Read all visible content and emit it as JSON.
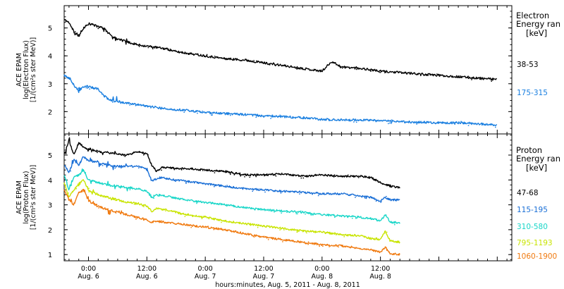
{
  "chart_data": [
    {
      "type": "line",
      "panel": "electron",
      "ylabel_lines": [
        "ACE EPAM",
        "log(Electron Flux)",
        "[1/(cm²s ster MeV)]"
      ],
      "legend_title_lines": [
        "Electron",
        "Energy ran"
      ],
      "legend_unit": "[keV]",
      "ylim": [
        1.2,
        5.8
      ],
      "yticks": [
        2,
        3,
        4,
        5
      ],
      "xlim": [
        -5,
        87
      ],
      "series": [
        {
          "name": "38-53",
          "color": "#000000",
          "x": [
            -5,
            -4,
            -3,
            -2,
            -1,
            0,
            1,
            2,
            3,
            4,
            5,
            6,
            8,
            10,
            12,
            14,
            16,
            18,
            20,
            24,
            28,
            32,
            36,
            40,
            44,
            48,
            50,
            52,
            56,
            60,
            64,
            68,
            72,
            76,
            80,
            84
          ],
          "y": [
            5.3,
            5.2,
            4.85,
            4.7,
            5.0,
            5.15,
            5.1,
            5.05,
            5.0,
            4.85,
            4.7,
            4.6,
            4.5,
            4.4,
            4.35,
            4.3,
            4.25,
            4.15,
            4.1,
            4.0,
            3.9,
            3.85,
            3.75,
            3.65,
            3.55,
            3.45,
            3.8,
            3.6,
            3.55,
            3.45,
            3.4,
            3.35,
            3.3,
            3.25,
            3.2,
            3.15
          ]
        },
        {
          "name": "175-315",
          "color": "#1a7fe0",
          "x": [
            -5,
            -4,
            -3,
            -2,
            -1,
            0,
            1,
            2,
            3,
            4,
            6,
            8,
            12,
            16,
            20,
            24,
            28,
            32,
            36,
            40,
            44,
            48,
            52,
            56,
            60,
            64,
            68,
            72,
            76,
            80,
            84
          ],
          "y": [
            3.3,
            3.2,
            2.95,
            2.75,
            2.9,
            2.9,
            2.85,
            2.8,
            2.6,
            2.45,
            2.35,
            2.3,
            2.2,
            2.1,
            2.05,
            1.97,
            1.93,
            1.9,
            1.85,
            1.82,
            1.78,
            1.72,
            1.7,
            1.7,
            1.67,
            1.64,
            1.62,
            1.6,
            1.6,
            1.57,
            1.52
          ]
        }
      ]
    },
    {
      "type": "line",
      "panel": "proton",
      "ylabel_lines": [
        "ACE EPAM",
        "log(Proton Flux)",
        "[1/(cm²s ster MeV)]"
      ],
      "legend_title_lines": [
        "Proton",
        "Energy ran"
      ],
      "legend_unit": "[keV]",
      "ylim": [
        0.75,
        5.85
      ],
      "yticks": [
        1,
        2,
        3,
        4,
        5
      ],
      "xlim": [
        -5,
        87
      ],
      "xtick_labels": [
        {
          "x": 0,
          "time": "0:00",
          "date": "Aug. 6"
        },
        {
          "x": 12,
          "time": "12:00",
          "date": "Aug. 6"
        },
        {
          "x": 24,
          "time": "0:00",
          "date": "Aug. 7"
        },
        {
          "x": 36,
          "time": "12:00",
          "date": "Aug. 7"
        },
        {
          "x": 48,
          "time": "0:00",
          "date": "Aug. 8"
        },
        {
          "x": 60,
          "time": "12:00",
          "date": "Aug. 8"
        }
      ],
      "xlabel": "hours:minutes, Aug.  5, 2011 - Aug.  8, 2011",
      "series": [
        {
          "name": "47-68",
          "color": "#000000",
          "x": [
            -5,
            -4,
            -3,
            -2,
            -1,
            0,
            2,
            4,
            6,
            8,
            10,
            12,
            13,
            14,
            15,
            16,
            20,
            24,
            28,
            32,
            36,
            40,
            44,
            48,
            52,
            56,
            58,
            60,
            62,
            64
          ],
          "y": [
            5.0,
            5.6,
            5.0,
            5.5,
            5.3,
            5.25,
            5.15,
            5.1,
            5.05,
            5.0,
            5.15,
            5.05,
            4.6,
            4.35,
            4.5,
            4.5,
            4.45,
            4.4,
            4.35,
            4.2,
            4.2,
            4.25,
            4.15,
            4.2,
            4.15,
            4.15,
            4.1,
            3.9,
            3.75,
            3.7
          ]
        },
        {
          "name": "115-195",
          "color": "#1a6fd6",
          "x": [
            -5,
            -4,
            -3,
            -2,
            -1,
            0,
            2,
            4,
            6,
            8,
            10,
            12,
            13,
            14,
            15,
            16,
            20,
            24,
            28,
            32,
            36,
            40,
            44,
            48,
            52,
            56,
            58,
            60,
            61,
            62,
            64
          ],
          "y": [
            4.6,
            4.3,
            4.8,
            4.6,
            4.95,
            4.75,
            4.7,
            4.6,
            4.55,
            4.55,
            4.55,
            4.45,
            3.95,
            4.05,
            4.1,
            4.05,
            3.95,
            3.85,
            3.75,
            3.65,
            3.6,
            3.55,
            3.5,
            3.45,
            3.45,
            3.35,
            3.3,
            3.15,
            3.3,
            3.2,
            3.2
          ]
        },
        {
          "name": "310-580",
          "color": "#18d6c8",
          "x": [
            -5,
            -4,
            -3,
            -2,
            -1,
            0,
            2,
            4,
            6,
            8,
            10,
            12,
            13,
            14,
            16,
            20,
            24,
            28,
            32,
            36,
            40,
            44,
            48,
            52,
            56,
            58,
            60,
            61,
            62,
            64
          ],
          "y": [
            4.2,
            3.6,
            4.1,
            4.2,
            4.35,
            4.0,
            3.9,
            3.8,
            3.75,
            3.7,
            3.65,
            3.55,
            3.3,
            3.4,
            3.35,
            3.2,
            3.1,
            3.0,
            2.9,
            2.8,
            2.75,
            2.7,
            2.6,
            2.55,
            2.5,
            2.45,
            2.35,
            2.6,
            2.3,
            2.28
          ]
        },
        {
          "name": "795-1193",
          "color": "#c8e400",
          "x": [
            -5,
            -4,
            -3,
            -2,
            -1,
            0,
            2,
            4,
            6,
            8,
            10,
            12,
            13,
            14,
            16,
            20,
            24,
            28,
            32,
            36,
            40,
            44,
            48,
            52,
            56,
            58,
            60,
            61,
            62,
            64
          ],
          "y": [
            3.9,
            3.3,
            3.6,
            3.85,
            4.0,
            3.6,
            3.4,
            3.3,
            3.2,
            3.1,
            3.05,
            2.95,
            2.75,
            2.85,
            2.8,
            2.6,
            2.5,
            2.35,
            2.25,
            2.15,
            2.05,
            1.95,
            1.9,
            1.8,
            1.75,
            1.65,
            1.6,
            1.95,
            1.55,
            1.5
          ]
        },
        {
          "name": "1060-1900",
          "color": "#f07a10",
          "x": [
            -5,
            -4,
            -3,
            -2,
            -1,
            0,
            2,
            4,
            6,
            8,
            10,
            12,
            13,
            14,
            16,
            20,
            24,
            28,
            32,
            36,
            40,
            44,
            48,
            52,
            56,
            58,
            60,
            61,
            62,
            64
          ],
          "y": [
            3.6,
            3.2,
            3.0,
            3.5,
            3.6,
            3.15,
            2.95,
            2.8,
            2.7,
            2.6,
            2.5,
            2.4,
            2.3,
            2.35,
            2.3,
            2.2,
            2.1,
            2.0,
            1.85,
            1.7,
            1.6,
            1.5,
            1.4,
            1.35,
            1.25,
            1.2,
            1.1,
            1.3,
            1.05,
            1.0
          ]
        }
      ]
    }
  ]
}
